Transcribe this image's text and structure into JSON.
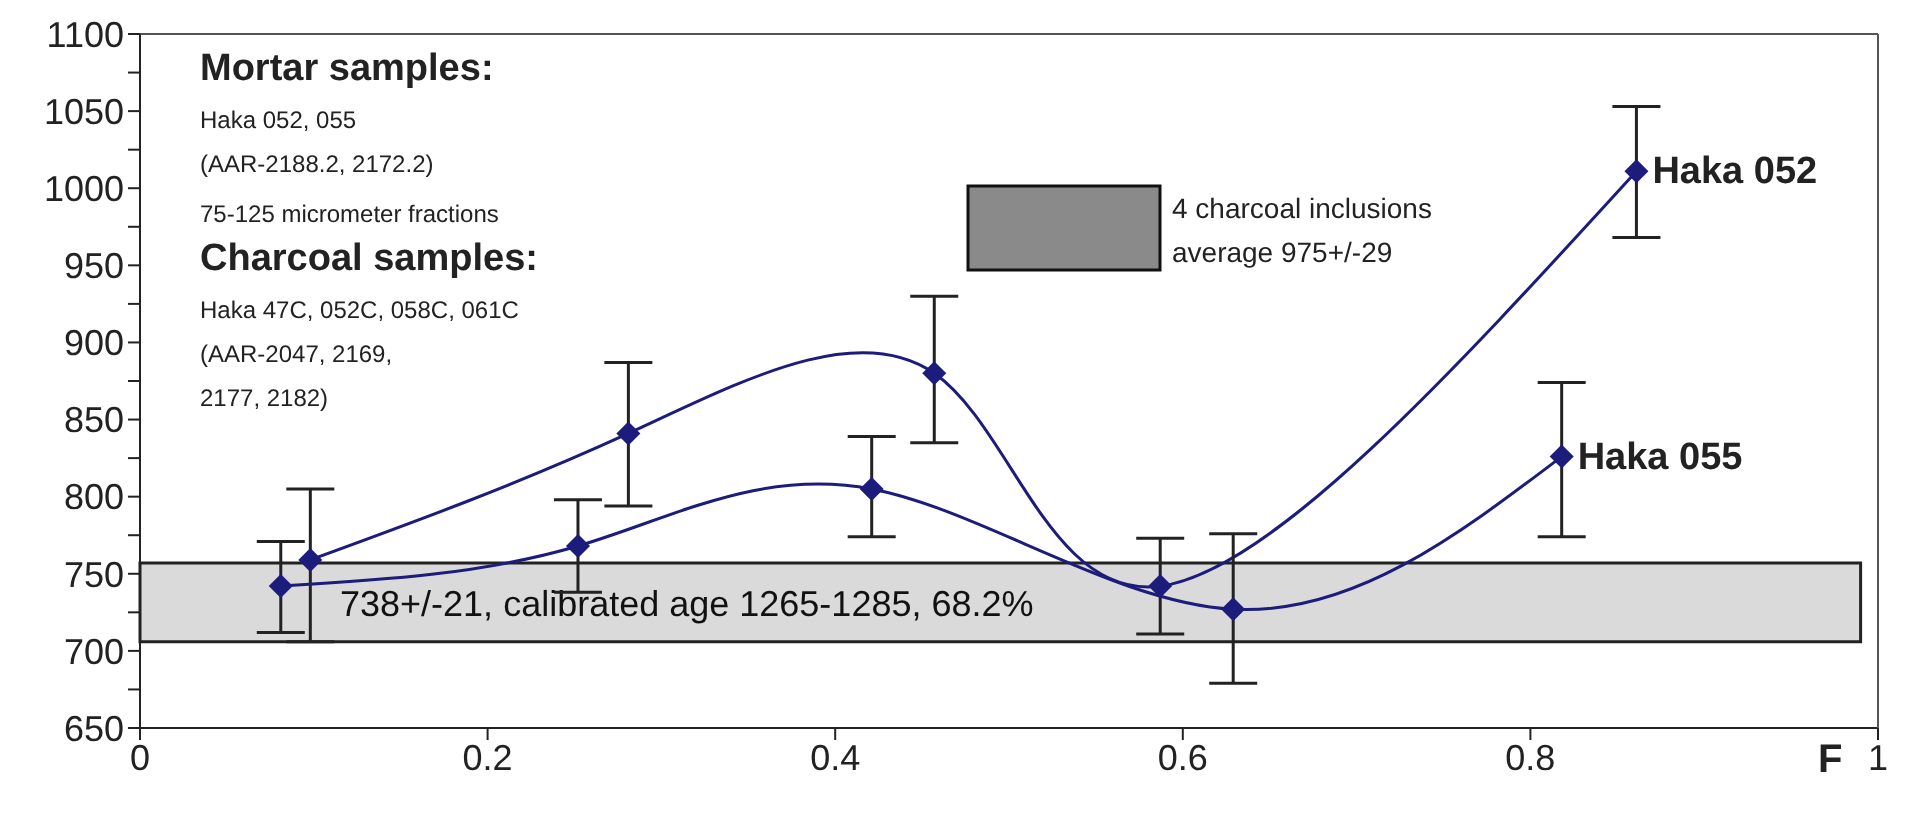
{
  "chart_data": {
    "type": "line",
    "xlabel": "F",
    "xlim": [
      0,
      1
    ],
    "xticks": [
      0,
      0.2,
      0.4,
      0.6,
      0.8,
      1
    ],
    "ylim": [
      650,
      1100
    ],
    "yticks": [
      650,
      {
        "value": 675,
        "label": null
      },
      700,
      {
        "value": 725,
        "label": null
      },
      750,
      {
        "value": 775,
        "label": null
      },
      800,
      {
        "value": 825,
        "label": null
      },
      850,
      {
        "value": 875,
        "label": null
      },
      900,
      {
        "value": 925,
        "label": null
      },
      950,
      {
        "value": 975,
        "label": null
      },
      1000,
      {
        "value": 1025,
        "label": null
      },
      1050,
      {
        "value": 1075,
        "label": null
      },
      1100
    ],
    "marker": "diamond",
    "line_style": "solid",
    "series": [
      {
        "name": "Haka 052",
        "color": "#1c1c7c",
        "x": [
          0.098,
          0.281,
          0.457,
          0.587,
          0.861
        ],
        "values": [
          759,
          841,
          880,
          742,
          1011
        ],
        "errors": [
          [
            706,
            805
          ],
          [
            794,
            887
          ],
          [
            835,
            930
          ],
          [
            711,
            773
          ],
          [
            968,
            1053
          ]
        ]
      },
      {
        "name": "Haka 055",
        "color": "#1c1c7c",
        "x": [
          0.081,
          0.252,
          0.421,
          0.629,
          0.818
        ],
        "values": [
          742,
          768,
          805,
          727,
          826
        ],
        "errors": [
          [
            712,
            771
          ],
          [
            738,
            798
          ],
          [
            774,
            839
          ],
          [
            679,
            776
          ],
          [
            774,
            874
          ]
        ]
      }
    ],
    "bands": [
      {
        "axis": "y",
        "from": 706,
        "to": 757,
        "label": "738+/-21, calibrated age 1265-1285, 68.2%",
        "color": "#d4d4d4"
      }
    ],
    "annotations": [
      "Mortar samples:",
      "Haka 052, 055",
      "(AAR-2188.2, 2172.2)",
      "75-125 micrometer fractions",
      "Charcoal samples:",
      "Haka 47C, 052C, 058C, 061C",
      "(AAR-2047, 2169,",
      "2177, 2182)",
      "4 charcoal inclusions",
      "average 975+/-29"
    ]
  }
}
